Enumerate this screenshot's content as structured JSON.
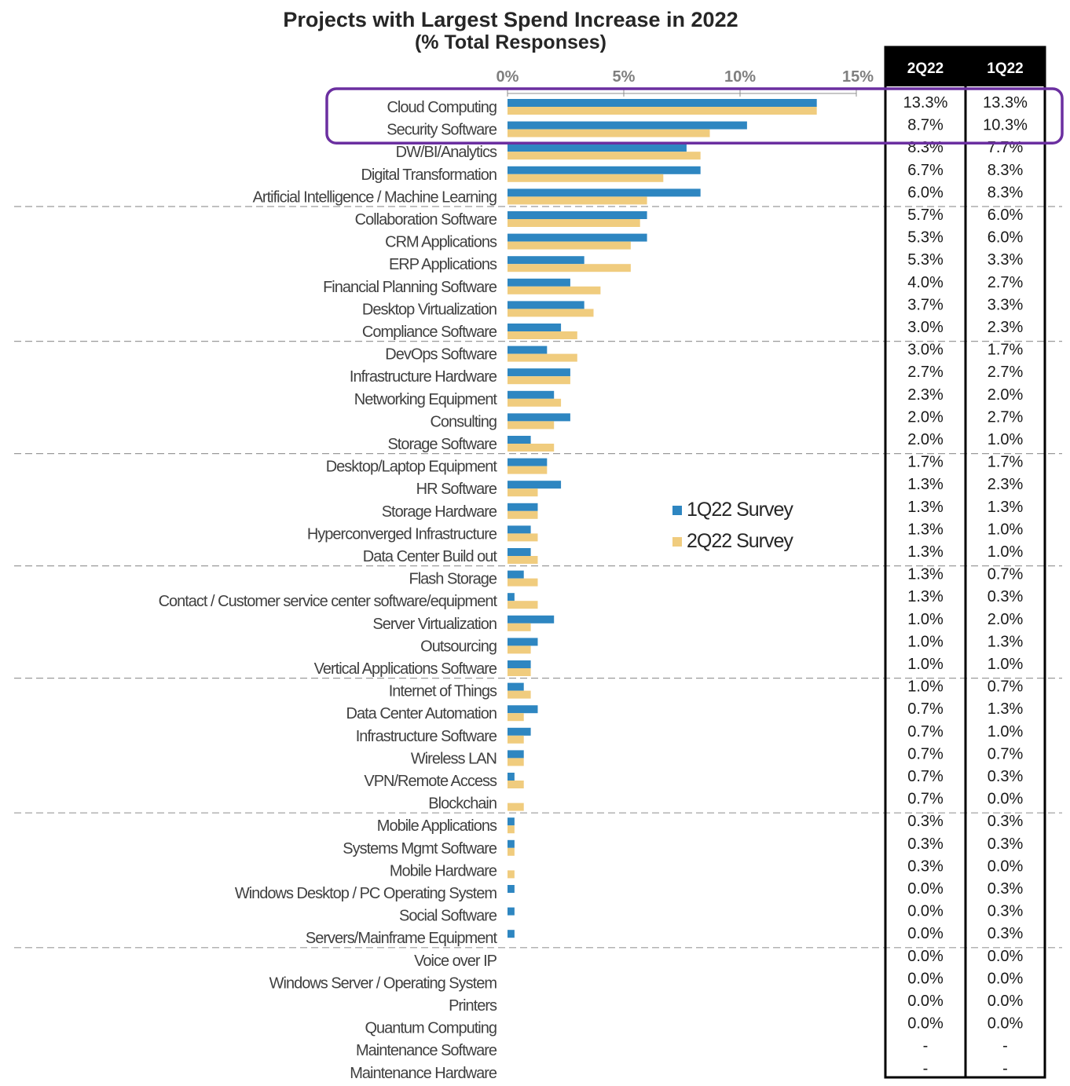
{
  "chart_data": {
    "type": "bar",
    "orientation": "horizontal",
    "title": "Projects with Largest Spend Increase in 2022",
    "subtitle": "(% Total Responses)",
    "x_ticks": [
      "0%",
      "5%",
      "10%",
      "15%"
    ],
    "xlim": [
      0,
      15
    ],
    "categories": [
      "Cloud Computing",
      "Security Software",
      "DW/BI/Analytics",
      "Digital Transformation",
      "Artificial Intelligence / Machine Learning",
      "Collaboration Software",
      "CRM Applications",
      "ERP Applications",
      "Financial Planning Software",
      "Desktop Virtualization",
      "Compliance Software",
      "DevOps Software",
      "Infrastructure Hardware",
      "Networking Equipment",
      "Consulting",
      "Storage Software",
      "Desktop/Laptop Equipment",
      "HR Software",
      "Storage Hardware",
      "Hyperconverged Infrastructure",
      "Data Center Build out",
      "Flash Storage",
      "Contact / Customer service center software/equipment",
      "Server Virtualization",
      "Outsourcing",
      "Vertical Applications Software",
      "Internet of Things",
      "Data Center Automation",
      "Infrastructure Software",
      "Wireless LAN",
      "VPN/Remote Access",
      "Blockchain",
      "Mobile Applications",
      "Systems Mgmt Software",
      "Mobile Hardware",
      "Windows Desktop / PC Operating System",
      "Social Software",
      "Servers/Mainframe Equipment",
      "Voice over IP",
      "Windows Server / Operating System",
      "Printers",
      "Quantum Computing",
      "Maintenance Software",
      "Maintenance Hardware"
    ],
    "series": [
      {
        "name": "1Q22 Survey",
        "color": "#2e86c1",
        "values": [
          13.3,
          10.3,
          7.7,
          8.3,
          8.3,
          6.0,
          6.0,
          3.3,
          2.7,
          3.3,
          2.3,
          1.7,
          2.7,
          2.0,
          2.7,
          1.0,
          1.7,
          2.3,
          1.3,
          1.0,
          1.0,
          0.7,
          0.3,
          2.0,
          1.3,
          1.0,
          0.7,
          1.3,
          1.0,
          0.7,
          0.3,
          0.0,
          0.3,
          0.3,
          0.0,
          0.3,
          0.3,
          0.3,
          0.0,
          0.0,
          0.0,
          0.0,
          0,
          0
        ]
      },
      {
        "name": "2Q22 Survey",
        "color": "#f0cc7e",
        "values": [
          13.3,
          8.7,
          8.3,
          6.7,
          6.0,
          5.7,
          5.3,
          5.3,
          4.0,
          3.7,
          3.0,
          3.0,
          2.7,
          2.3,
          2.0,
          2.0,
          1.7,
          1.3,
          1.3,
          1.3,
          1.3,
          1.3,
          1.3,
          1.0,
          1.0,
          1.0,
          1.0,
          0.7,
          0.7,
          0.7,
          0.7,
          0.7,
          0.3,
          0.3,
          0.3,
          0.0,
          0.0,
          0.0,
          0.0,
          0.0,
          0.0,
          0.0,
          0,
          0
        ]
      }
    ],
    "table": {
      "headers": [
        "2Q22",
        "1Q22"
      ],
      "rows": [
        [
          "13.3%",
          "13.3%"
        ],
        [
          "8.7%",
          "10.3%"
        ],
        [
          "8.3%",
          "7.7%"
        ],
        [
          "6.7%",
          "8.3%"
        ],
        [
          "6.0%",
          "8.3%"
        ],
        [
          "5.7%",
          "6.0%"
        ],
        [
          "5.3%",
          "6.0%"
        ],
        [
          "5.3%",
          "3.3%"
        ],
        [
          "4.0%",
          "2.7%"
        ],
        [
          "3.7%",
          "3.3%"
        ],
        [
          "3.0%",
          "2.3%"
        ],
        [
          "3.0%",
          "1.7%"
        ],
        [
          "2.7%",
          "2.7%"
        ],
        [
          "2.3%",
          "2.0%"
        ],
        [
          "2.0%",
          "2.7%"
        ],
        [
          "2.0%",
          "1.0%"
        ],
        [
          "1.7%",
          "1.7%"
        ],
        [
          "1.3%",
          "2.3%"
        ],
        [
          "1.3%",
          "1.3%"
        ],
        [
          "1.3%",
          "1.0%"
        ],
        [
          "1.3%",
          "1.0%"
        ],
        [
          "1.3%",
          "0.7%"
        ],
        [
          "1.3%",
          "0.3%"
        ],
        [
          "1.0%",
          "2.0%"
        ],
        [
          "1.0%",
          "1.3%"
        ],
        [
          "1.0%",
          "1.0%"
        ],
        [
          "1.0%",
          "0.7%"
        ],
        [
          "0.7%",
          "1.3%"
        ],
        [
          "0.7%",
          "1.0%"
        ],
        [
          "0.7%",
          "0.7%"
        ],
        [
          "0.7%",
          "0.3%"
        ],
        [
          "0.7%",
          "0.0%"
        ],
        [
          "0.3%",
          "0.3%"
        ],
        [
          "0.3%",
          "0.3%"
        ],
        [
          "0.3%",
          "0.0%"
        ],
        [
          "0.0%",
          "0.3%"
        ],
        [
          "0.0%",
          "0.3%"
        ],
        [
          "0.0%",
          "0.3%"
        ],
        [
          "0.0%",
          "0.0%"
        ],
        [
          "0.0%",
          "0.0%"
        ],
        [
          "0.0%",
          "0.0%"
        ],
        [
          "0.0%",
          "0.0%"
        ],
        [
          "-",
          "-"
        ],
        [
          "-",
          "-"
        ]
      ]
    },
    "highlight": {
      "rows": [
        0,
        1
      ],
      "color": "#6b2fa0"
    },
    "separator_after_rows": [
      4,
      10,
      15,
      20,
      25,
      31,
      37
    ],
    "legend_position": "center-right"
  }
}
